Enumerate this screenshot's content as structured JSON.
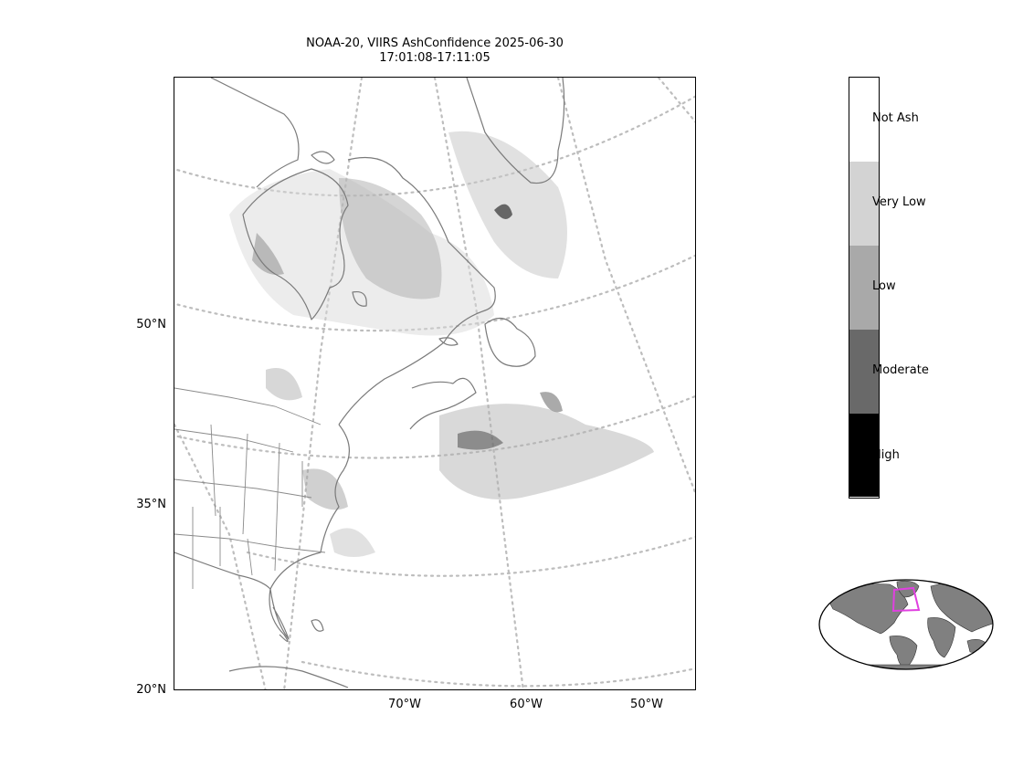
{
  "title": {
    "line1": "NOAA-20, VIIRS AshConfidence 2025-06-30",
    "line2": "17:01:08-17:11:05"
  },
  "axes": {
    "lat_labels": [
      "50°N",
      "35°N",
      "20°N"
    ],
    "lon_labels": [
      "70°W",
      "60°W",
      "50°W"
    ]
  },
  "colorbar": {
    "classes": [
      {
        "label": "Not Ash",
        "color": "#ffffff"
      },
      {
        "label": "Very Low",
        "color": "#d3d3d3"
      },
      {
        "label": "Low",
        "color": "#a9a9a9"
      },
      {
        "label": "Moderate",
        "color": "#696969"
      },
      {
        "label": "High",
        "color": "#000000"
      }
    ]
  },
  "colors": {
    "coastline": "#7a7a7a",
    "gridline": "#bdbdbd",
    "inset_land": "#808080",
    "inset_highlight": "#e040e0"
  },
  "map": {
    "projection": "conic",
    "region": "Eastern North America / NW Atlantic",
    "graticule": "dotted"
  }
}
